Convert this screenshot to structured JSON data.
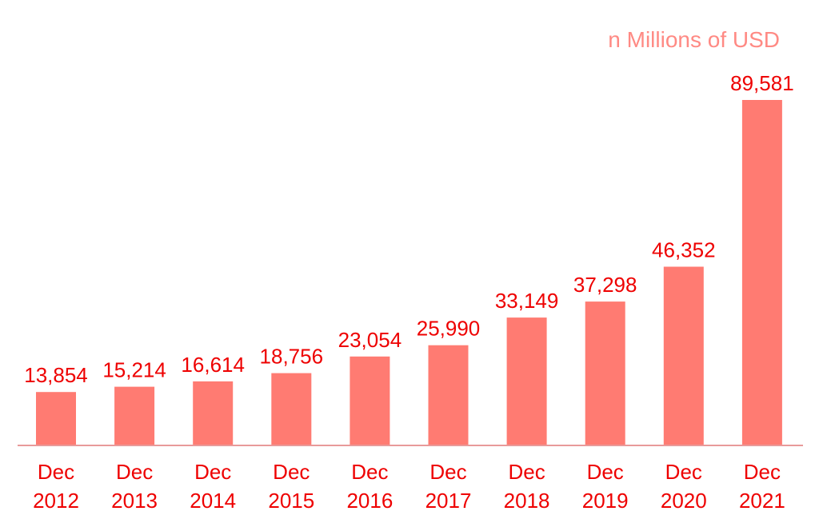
{
  "chart_data": {
    "type": "bar",
    "unit_label": "n Millions of USD",
    "categories": [
      [
        "Dec",
        "2012"
      ],
      [
        "Dec",
        "2013"
      ],
      [
        "Dec",
        "2014"
      ],
      [
        "Dec",
        "2015"
      ],
      [
        "Dec",
        "2016"
      ],
      [
        "Dec",
        "2017"
      ],
      [
        "Dec",
        "2018"
      ],
      [
        "Dec",
        "2019"
      ],
      [
        "Dec",
        "2020"
      ],
      [
        "Dec",
        "2021"
      ]
    ],
    "values": [
      13854,
      15214,
      16614,
      18756,
      23054,
      25990,
      33149,
      37298,
      46352,
      89581
    ],
    "value_labels": [
      "13,854",
      "15,214",
      "16,614",
      "18,756",
      "23,054",
      "25,990",
      "33,149",
      "37,298",
      "46,352",
      "89,581"
    ],
    "ylim": [
      0,
      89581
    ],
    "grid": false,
    "legend": "none",
    "colors": {
      "bar": "#ff7b72",
      "baseline": "#e89a9a",
      "value_label": "#ee0000",
      "tick_label": "#ee0000",
      "unit_label": "#ff8a84"
    }
  }
}
